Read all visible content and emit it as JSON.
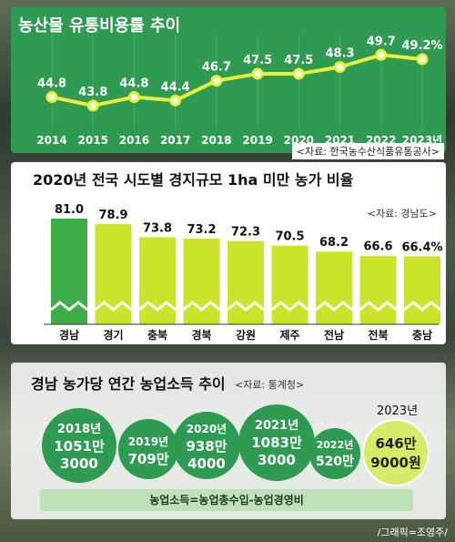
{
  "colors": {
    "panel_green": "#2e9a52",
    "line_yellow": "#e7f03a",
    "bar_lime": "#cce32c",
    "bar_highlight": "#3fae49"
  },
  "chart_data": [
    {
      "type": "line",
      "title": "농산물 유통비용률 추이",
      "source": "<자료: 한국농수산식품유통공사>",
      "x": [
        "2014",
        "2015",
        "2016",
        "2017",
        "2018",
        "2019",
        "2020",
        "2021",
        "2022",
        "2023년"
      ],
      "values": [
        44.8,
        43.8,
        44.8,
        44.4,
        46.7,
        47.5,
        47.5,
        48.3,
        49.7,
        49.2
      ],
      "labels": [
        "44.8",
        "43.8",
        "44.8",
        "44.4",
        "46.7",
        "47.5",
        "47.5",
        "48.3",
        "49.7",
        "49.2%"
      ],
      "ylim": [
        42,
        51
      ],
      "grid": true
    },
    {
      "type": "bar",
      "title": "2020년 전국 시도별 경지규모 1ha 미만 농가 비율",
      "source": "<자료: 경남도>",
      "categories": [
        "경남",
        "경기",
        "충북",
        "경북",
        "강원",
        "제주",
        "전남",
        "전북",
        "충남"
      ],
      "values": [
        81.0,
        78.9,
        73.8,
        73.2,
        72.3,
        70.5,
        68.2,
        66.6,
        66.4
      ],
      "labels": [
        "81.0",
        "78.9",
        "73.8",
        "73.2",
        "72.3",
        "70.5",
        "68.2",
        "66.6",
        "66.4%"
      ],
      "highlight_index": 0
    },
    {
      "type": "bubble",
      "title": "경남 농가당 연간 농업소득 추이",
      "source": "<자료: 통계청>",
      "items": [
        {
          "year": "2018년",
          "line1": "1051만",
          "line2": "3000",
          "value": 10513000
        },
        {
          "year": "2019년",
          "line1": "709만",
          "line2": "",
          "value": 7090000
        },
        {
          "year": "2020년",
          "line1": "938만",
          "line2": "4000",
          "value": 9384000
        },
        {
          "year": "2021년",
          "line1": "1083만",
          "line2": "3000",
          "value": 10833000
        },
        {
          "year": "2022년",
          "line1": "520만",
          "line2": "",
          "value": 5200000
        },
        {
          "year": "2023년",
          "line1": "646만",
          "line2": "9000원",
          "value": 6469000
        }
      ],
      "formula": "농업소득=농업총수입-농업경영비"
    }
  ],
  "credit": "/그래픽=조영주/"
}
